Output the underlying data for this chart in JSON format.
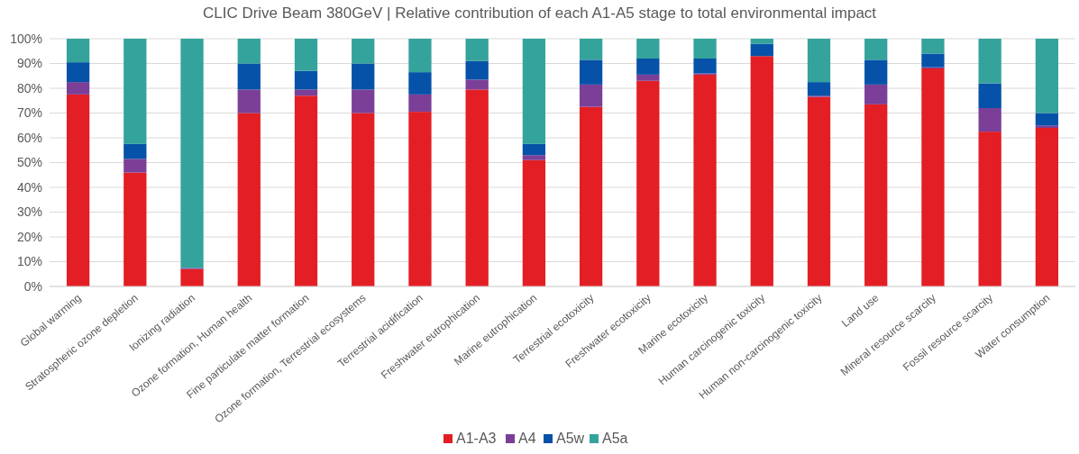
{
  "chart_data": {
    "type": "bar",
    "title": "CLIC Drive Beam 380GeV | Relative contribution of each A1-A5 stage to total environmental impact",
    "categories": [
      "Global warming",
      "Stratospheric ozone depletion",
      "Ionizing radiation",
      "Ozone formation, Human health",
      "Fine particulate matter formation",
      "Ozone formation, Terrestrial ecosystems",
      "Terrestrial acidification",
      "Freshwater eutrophication",
      "Marine eutrophication",
      "Terrestrial ecotoxicity",
      "Freshwater ecotoxicity",
      "Marine ecotoxicity",
      "Human carcinogenic toxicity",
      "Human non-carcinogenic toxicity",
      "Land use",
      "Mineral resource scarcity",
      "Fossil resource scarcity",
      "Water consumption"
    ],
    "stacked": true,
    "series": [
      {
        "name": "A1-A3",
        "color": "#e31e24",
        "values": [
          77.5,
          46,
          7,
          70,
          77,
          70,
          70.5,
          79.5,
          51,
          72.5,
          83,
          85.5,
          93,
          76.5,
          73.5,
          88,
          62.5,
          64
        ]
      },
      {
        "name": "A4",
        "color": "#7b3f98",
        "values": [
          5,
          5.5,
          0.5,
          9.5,
          2.5,
          9.5,
          7,
          4,
          2,
          9,
          2.5,
          0.5,
          0,
          0.5,
          8,
          0.5,
          9.5,
          1
        ]
      },
      {
        "name": "A5w",
        "color": "#0652a8",
        "values": [
          8,
          6,
          0,
          10.5,
          7.5,
          10.5,
          9,
          7.5,
          4.5,
          10,
          6.5,
          6,
          5,
          5.5,
          10,
          5.5,
          10,
          5
        ]
      },
      {
        "name": "A5a",
        "color": "#34a39b",
        "values": [
          9.5,
          42.5,
          92.5,
          10,
          13,
          10,
          13.5,
          9,
          42.5,
          8.5,
          8,
          8,
          2,
          17.5,
          8.5,
          6,
          18,
          30
        ]
      }
    ],
    "ylim": [
      0,
      100
    ],
    "yticks": [
      {
        "value": 0,
        "label": "0%"
      },
      {
        "value": 10,
        "label": "10%"
      },
      {
        "value": 20,
        "label": "20%"
      },
      {
        "value": 30,
        "label": "30%"
      },
      {
        "value": 40,
        "label": "40%"
      },
      {
        "value": 50,
        "label": "50%"
      },
      {
        "value": 60,
        "label": "60%"
      },
      {
        "value": 70,
        "label": "70%"
      },
      {
        "value": 80,
        "label": "80%"
      },
      {
        "value": 90,
        "label": "90%"
      },
      {
        "value": 100,
        "label": "100%"
      }
    ],
    "grid": "y",
    "legend": "bottom"
  }
}
